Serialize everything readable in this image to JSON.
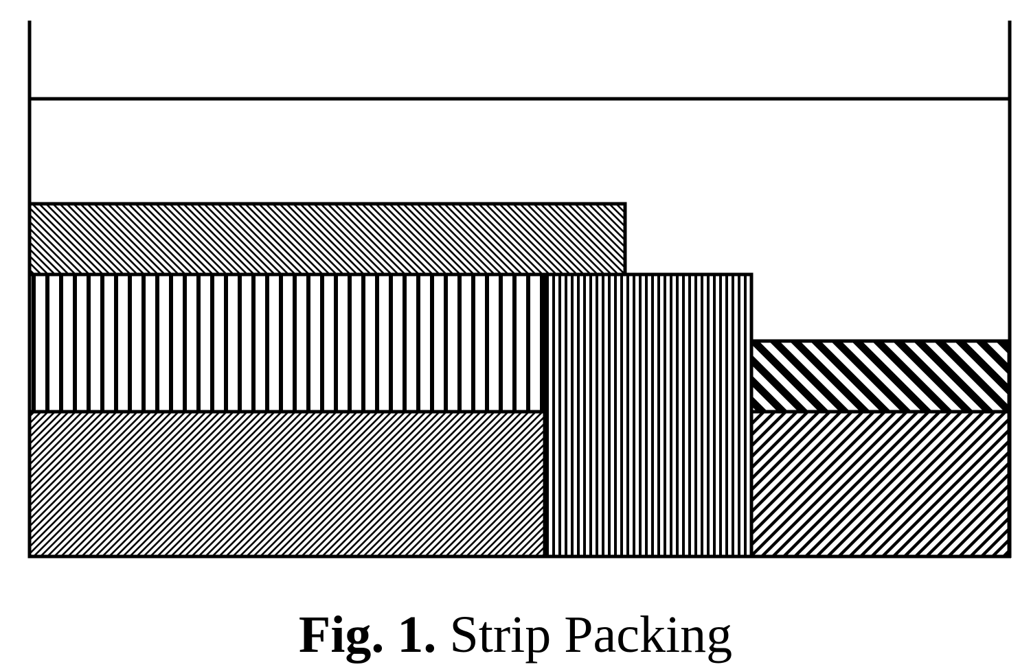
{
  "figure": {
    "caption_label": "Fig. 1.",
    "caption_text": "Strip Packing",
    "line_color": "#000000",
    "background": "#ffffff",
    "rectangles": [
      {
        "name": "rect-bottom-left",
        "pattern": "diag-fine-up"
      },
      {
        "name": "rect-middle-left",
        "pattern": "vertical-wide"
      },
      {
        "name": "rect-top-left",
        "pattern": "diag-fine-down"
      },
      {
        "name": "rect-center-tall",
        "pattern": "vertical-narrow"
      },
      {
        "name": "rect-bottom-right",
        "pattern": "diag-medium-up"
      },
      {
        "name": "rect-top-right",
        "pattern": "diag-bold-down"
      }
    ]
  }
}
